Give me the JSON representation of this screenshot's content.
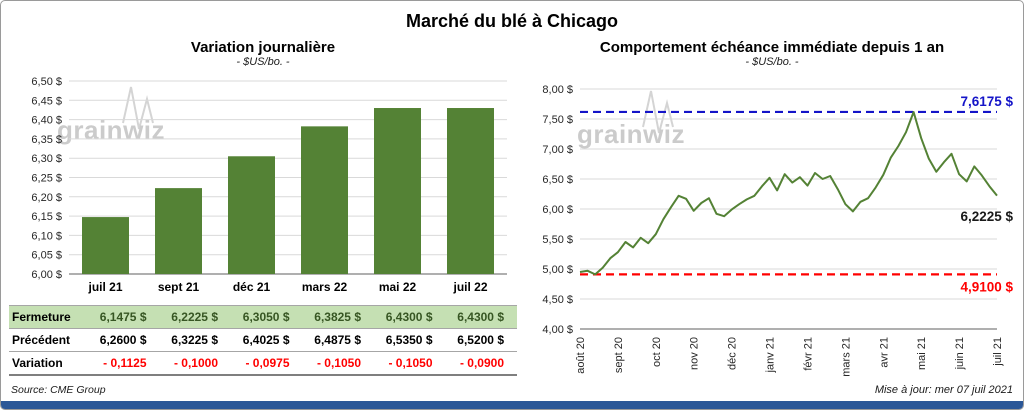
{
  "title": "Marché du blé à Chicago",
  "watermark": "grainwiz",
  "colors": {
    "bar": "#548235",
    "line": "#548235",
    "high": "#1414c8",
    "low": "#ff0000",
    "grid": "#d9d9d9",
    "axis": "#7f7f7f",
    "table_green_bg": "#c5e0b3",
    "table_green_text": "#375623",
    "variation_red": "#ff0000",
    "accent_bar": "#2b5797"
  },
  "left_panel": {
    "title": "Variation journalière",
    "subtitle": "- $US/bo. -"
  },
  "right_panel": {
    "title": "Comportement échéance immédiate depuis 1 an",
    "subtitle": "- $US/bo. -"
  },
  "left_table": {
    "rows": [
      {
        "label": "Fermeture",
        "style": "close",
        "values": [
          "6,1475  $",
          "6,2225  $",
          "6,3050  $",
          "6,3825  $",
          "6,4300  $",
          "6,4300  $"
        ]
      },
      {
        "label": "Précédent",
        "style": "prev",
        "values": [
          "6,2600  $",
          "6,3225  $",
          "6,4025  $",
          "6,4875  $",
          "6,5350  $",
          "6,5200  $"
        ]
      },
      {
        "label": "Variation",
        "style": "var",
        "values": [
          "- 0,1125",
          "- 0,1000",
          "- 0,0975",
          "- 0,1050",
          "- 0,1050",
          "- 0,0900"
        ]
      }
    ]
  },
  "footer": {
    "source": "Source: CME Group",
    "updated": "Mise à jour: mer 07 juil 2021"
  },
  "chart_data": [
    {
      "type": "bar",
      "title": "Variation journalière",
      "subtitle": "- $US/bo. -",
      "categories": [
        "juil 21",
        "sept 21",
        "déc 21",
        "mars 22",
        "mai 22",
        "juil 22"
      ],
      "values": [
        6.1475,
        6.2225,
        6.305,
        6.3825,
        6.43,
        6.43
      ],
      "ylim": [
        6.0,
        6.5
      ],
      "ytick_step": 0.05,
      "ylabel": "$US/bo.",
      "grid": true,
      "legend": "none"
    },
    {
      "type": "line",
      "title": "Comportement échéance immédiate depuis 1 an",
      "subtitle": "- $US/bo. -",
      "x_labels": [
        "août 20",
        "sept 20",
        "oct 20",
        "nov 20",
        "déc 20",
        "janv 21",
        "févr 21",
        "mars 21",
        "avr 21",
        "mai 21",
        "juin 21",
        "juil 21"
      ],
      "values": [
        4.95,
        4.97,
        4.91,
        5.02,
        5.18,
        5.28,
        5.45,
        5.36,
        5.52,
        5.43,
        5.58,
        5.83,
        6.03,
        6.22,
        6.17,
        5.97,
        6.1,
        6.18,
        5.92,
        5.88,
        5.99,
        6.08,
        6.16,
        6.22,
        6.38,
        6.52,
        6.31,
        6.58,
        6.44,
        6.53,
        6.39,
        6.6,
        6.5,
        6.55,
        6.33,
        6.08,
        5.96,
        6.12,
        6.18,
        6.36,
        6.57,
        6.86,
        7.05,
        7.28,
        7.6175,
        7.18,
        6.84,
        6.62,
        6.78,
        6.92,
        6.58,
        6.46,
        6.71,
        6.56,
        6.38,
        6.2225
      ],
      "ylim": [
        4.0,
        8.0
      ],
      "ytick_step": 0.5,
      "grid": true,
      "legend": "none",
      "high_line": {
        "value": 7.6175,
        "label": "7,6175 $"
      },
      "low_line": {
        "value": 4.91,
        "label": "4,9100 $"
      },
      "last_label": {
        "value": 6.2225,
        "label": "6,2225 $"
      }
    }
  ]
}
